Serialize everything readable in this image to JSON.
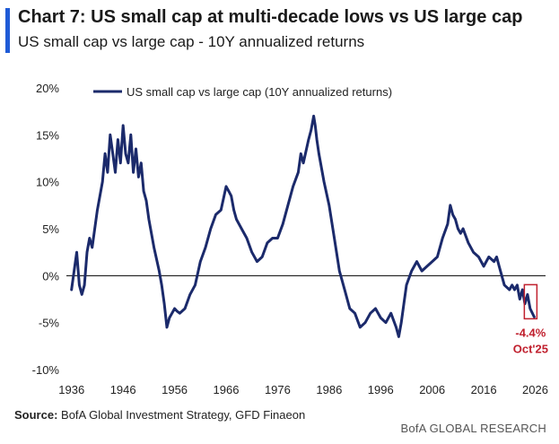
{
  "header": {
    "title": "Chart 7: US small cap at multi-decade lows vs US large cap",
    "subtitle": "US small cap vs large cap - 10Y annualized returns"
  },
  "footer": {
    "source_label": "Source:",
    "source_text": " BofA Global Investment Strategy, GFD Finaeon",
    "brand": "BofA GLOBAL RESEARCH"
  },
  "colors": {
    "line": "#1b2a6b",
    "accent": "#1f5bd6",
    "annotation": "#c0202e"
  },
  "chart_data": {
    "type": "line",
    "title": "",
    "xlabel": "",
    "ylabel": "",
    "xlim": [
      1935,
      2028
    ],
    "ylim": [
      -10,
      20
    ],
    "x_ticks": [
      1936,
      1946,
      1956,
      1966,
      1976,
      1986,
      1996,
      2006,
      2016,
      2026
    ],
    "y_ticks": [
      20,
      15,
      10,
      5,
      0,
      -5,
      -10
    ],
    "y_tick_labels": [
      "20%",
      "15%",
      "10%",
      "5%",
      "0%",
      "-5%",
      "-10%"
    ],
    "legend": {
      "position": "top",
      "entries": [
        "US small cap vs large cap (10Y annualized returns)"
      ]
    },
    "series": [
      {
        "name": "US small cap vs large cap (10Y annualized returns)",
        "x": [
          1936.0,
          1936.5,
          1937.0,
          1937.5,
          1938.0,
          1938.5,
          1939.0,
          1939.5,
          1940.0,
          1940.5,
          1941.0,
          1942.0,
          1942.5,
          1943.0,
          1943.5,
          1944.0,
          1944.5,
          1945.0,
          1945.5,
          1946.0,
          1946.5,
          1947.0,
          1947.5,
          1948.0,
          1948.5,
          1949.0,
          1949.5,
          1950.0,
          1950.5,
          1951.0,
          1952.0,
          1953.0,
          1953.5,
          1954.0,
          1954.5,
          1955.0,
          1955.5,
          1956.0,
          1956.5,
          1957.0,
          1958.0,
          1959.0,
          1960.0,
          1961.0,
          1962.0,
          1963.0,
          1964.0,
          1965.0,
          1966.0,
          1966.5,
          1967.0,
          1967.5,
          1968.0,
          1969.0,
          1970.0,
          1971.0,
          1972.0,
          1973.0,
          1974.0,
          1975.0,
          1976.0,
          1977.0,
          1978.0,
          1979.0,
          1980.0,
          1980.5,
          1981.0,
          1982.0,
          1982.5,
          1983.0,
          1983.3,
          1983.6,
          1984.0,
          1985.0,
          1986.0,
          1987.0,
          1988.0,
          1989.0,
          1990.0,
          1991.0,
          1992.0,
          1993.0,
          1994.0,
          1995.0,
          1996.0,
          1997.0,
          1998.0,
          1999.0,
          1999.5,
          2000.0,
          2000.5,
          2001.0,
          2002.0,
          2003.0,
          2004.0,
          2005.0,
          2006.0,
          2007.0,
          2008.0,
          2009.0,
          2009.5,
          2010.0,
          2010.5,
          2011.0,
          2011.5,
          2012.0,
          2013.0,
          2014.0,
          2015.0,
          2016.0,
          2017.0,
          2018.0,
          2018.5,
          2019.0,
          2020.0,
          2021.0,
          2021.5,
          2022.0,
          2022.5,
          2023.0,
          2023.5,
          2024.0,
          2024.5,
          2025.0,
          2025.8
        ],
        "values": [
          -1.5,
          0.5,
          2.5,
          -1.0,
          -2.0,
          -1.0,
          2.5,
          4.0,
          3.0,
          5.0,
          7.0,
          10.0,
          13.0,
          11.0,
          15.0,
          13.0,
          11.0,
          14.5,
          12.0,
          16.0,
          13.0,
          12.0,
          15.0,
          11.0,
          13.5,
          10.5,
          12.0,
          9.0,
          8.0,
          6.0,
          3.0,
          0.5,
          -1.0,
          -3.0,
          -5.5,
          -4.5,
          -4.0,
          -3.5,
          -3.8,
          -4.0,
          -3.5,
          -2.0,
          -1.0,
          1.5,
          3.0,
          5.0,
          6.5,
          7.0,
          9.5,
          9.0,
          8.5,
          7.0,
          6.0,
          5.0,
          4.0,
          2.5,
          1.5,
          2.0,
          3.5,
          4.0,
          4.0,
          5.5,
          7.5,
          9.5,
          11.0,
          13.0,
          12.0,
          14.5,
          15.5,
          17.0,
          16.0,
          14.5,
          13.0,
          10.0,
          7.5,
          4.0,
          0.5,
          -1.5,
          -3.5,
          -4.0,
          -5.5,
          -5.0,
          -4.0,
          -3.5,
          -4.5,
          -5.0,
          -4.0,
          -5.5,
          -6.5,
          -5.0,
          -3.0,
          -1.0,
          0.5,
          1.5,
          0.5,
          1.0,
          1.5,
          2.0,
          4.0,
          5.5,
          7.5,
          6.5,
          6.0,
          5.0,
          4.5,
          5.0,
          3.5,
          2.5,
          2.0,
          1.0,
          2.0,
          1.5,
          2.0,
          1.0,
          -1.0,
          -1.5,
          -1.0,
          -1.5,
          -1.0,
          -2.5,
          -1.5,
          -3.0,
          -2.0,
          -3.5,
          -4.4
        ]
      }
    ],
    "annotations": [
      {
        "x": 2025.8,
        "y": -4.4,
        "value_label": "-4.4%",
        "date_label": "Oct'25"
      }
    ]
  }
}
